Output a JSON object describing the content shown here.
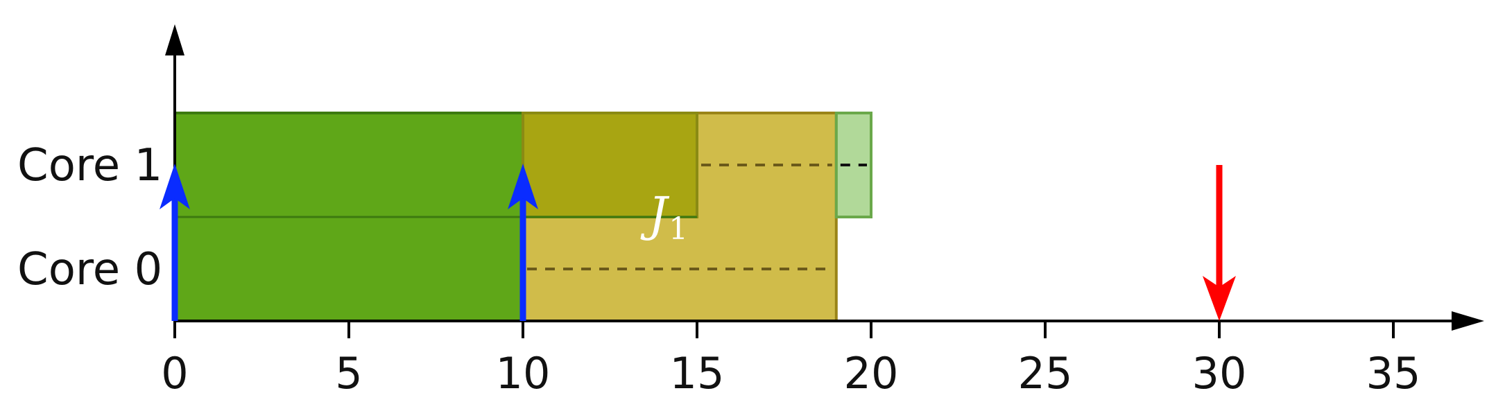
{
  "chart_data": {
    "type": "gantt",
    "x_ticks": [
      "0",
      "5",
      "10",
      "15",
      "20",
      "25",
      "30",
      "35"
    ],
    "x_range": [
      0,
      37.5
    ],
    "cores": [
      {
        "index": 0,
        "label": "Core 0"
      },
      {
        "index": 1,
        "label": "Core 1"
      }
    ],
    "blocks": [
      {
        "start": 0,
        "end": 10,
        "cores": [
          0,
          1
        ],
        "color": "#5fa718",
        "outline": "#3d7a10",
        "opacity": 1
      },
      {
        "start": 10,
        "end": 19,
        "cores": [
          0,
          1
        ],
        "color": "#c8b02a",
        "outline": "#9a8418",
        "opacity": 0.85
      },
      {
        "start": 10,
        "end": 15,
        "cores": [
          1
        ],
        "color": "#a8a512",
        "outline": "#8a8a14",
        "opacity": 1
      },
      {
        "start": 19,
        "end": 20,
        "cores": [
          1
        ],
        "color": "#9ed080",
        "outline": "#6aa84a",
        "opacity": 0.8
      }
    ],
    "dashed_lines": [
      {
        "start": 10,
        "end": 19,
        "core": 0,
        "color": "#6b5a1a"
      },
      {
        "start": 15,
        "end": 19,
        "core": 1,
        "color": "#6b5a1a"
      },
      {
        "start": 19,
        "end": 20,
        "core": 1,
        "color": "#111111"
      }
    ],
    "release_arrows": [
      {
        "x": 0,
        "color": "#0a2cff"
      },
      {
        "x": 10,
        "color": "#0a2cff"
      }
    ],
    "deadline_arrows": [
      {
        "x": 30,
        "color": "#ff0000"
      }
    ],
    "job_label": {
      "base": "J",
      "subscript": "1",
      "x": 14.2
    }
  },
  "colors": {
    "axis": "#000000",
    "release": "#0a2cff",
    "deadline": "#ff0000"
  }
}
